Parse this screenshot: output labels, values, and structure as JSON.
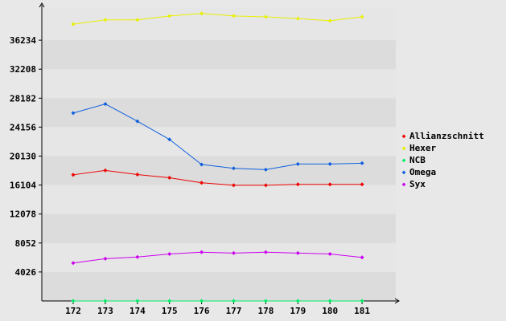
{
  "chart_data": {
    "type": "line",
    "title": "",
    "xlabel": "",
    "ylabel": "",
    "x": [
      172,
      173,
      174,
      175,
      176,
      177,
      178,
      179,
      180,
      181
    ],
    "ylim": [
      0,
      40000
    ],
    "yticks": [
      4026,
      8052,
      12078,
      16104,
      20130,
      24156,
      28182,
      32208,
      36234
    ],
    "grid": "alternating horizontal bands",
    "legend_position": "right",
    "series": [
      {
        "name": "Allianzschnitt",
        "color": "#ee0000",
        "values": [
          17530,
          18140,
          17560,
          17120,
          16420,
          16080,
          16080,
          16200,
          16200,
          16200
        ]
      },
      {
        "name": "Hexer",
        "color": "#e8f000",
        "values": [
          38460,
          39060,
          39060,
          39600,
          39960,
          39600,
          39480,
          39240,
          38940,
          39480
        ]
      },
      {
        "name": "NCB",
        "color": "#00ee66",
        "values": [
          0,
          0,
          0,
          0,
          0,
          0,
          0,
          0,
          0,
          0
        ]
      },
      {
        "name": "Omega",
        "color": "#1060e0",
        "values": [
          26110,
          27370,
          24970,
          22440,
          18960,
          18430,
          18250,
          19030,
          19030,
          19140
        ]
      },
      {
        "name": "Syx",
        "color": "#cc00ee",
        "values": [
          5270,
          5870,
          6110,
          6530,
          6770,
          6650,
          6770,
          6650,
          6530,
          6050
        ]
      }
    ]
  }
}
